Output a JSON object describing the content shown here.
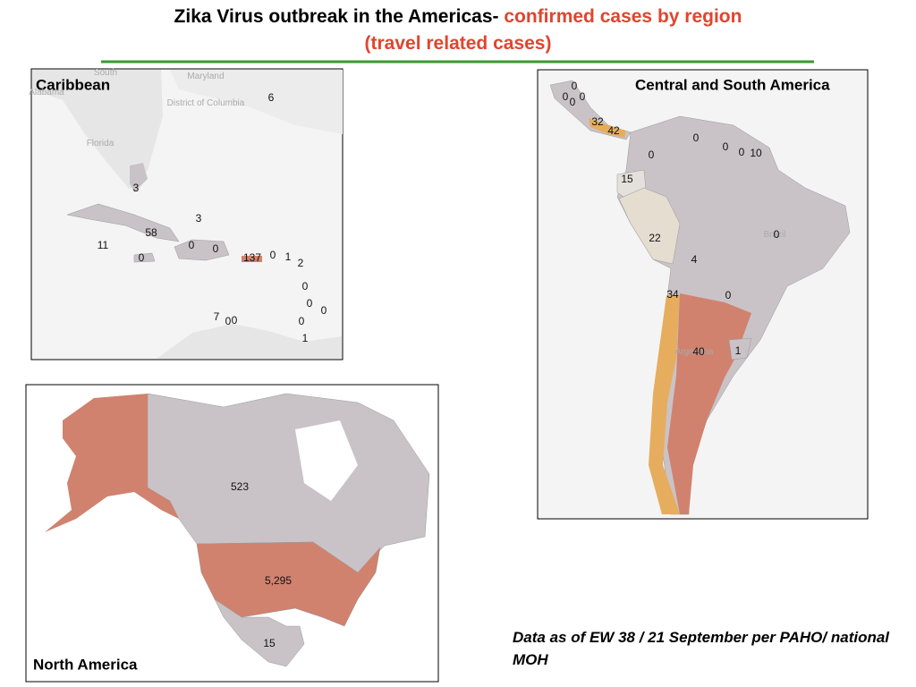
{
  "title": {
    "main": "Zika Virus outbreak in the Americas-",
    "highlight": "confirmed cases by region (travel related cases)"
  },
  "caribbean": {
    "title": "Caribbean",
    "place_names": [
      "South",
      "Alabama",
      "Maryland",
      "District of Columbia",
      "Florida"
    ],
    "labels": [
      "6",
      "3",
      "3",
      "58",
      "11",
      "0",
      "0",
      "0",
      "137",
      "0",
      "1",
      "2",
      "0",
      "0",
      "0",
      "7",
      "0",
      "0",
      "0",
      "1"
    ]
  },
  "central_south_america": {
    "title": "Central and South America",
    "place_names": [
      "Brazil",
      "Argentina"
    ],
    "labels": [
      "0",
      "0",
      "0",
      "0",
      "32",
      "42",
      "0",
      "0",
      "0",
      "10",
      "0",
      "15",
      "22",
      "0",
      "4",
      "34",
      "0",
      "40",
      "1"
    ]
  },
  "north_america": {
    "title": "North America",
    "labels": [
      "523",
      "5,295",
      "15"
    ]
  },
  "note": "Data as of EW 38 / 21 September per PAHO/ national MOH"
}
